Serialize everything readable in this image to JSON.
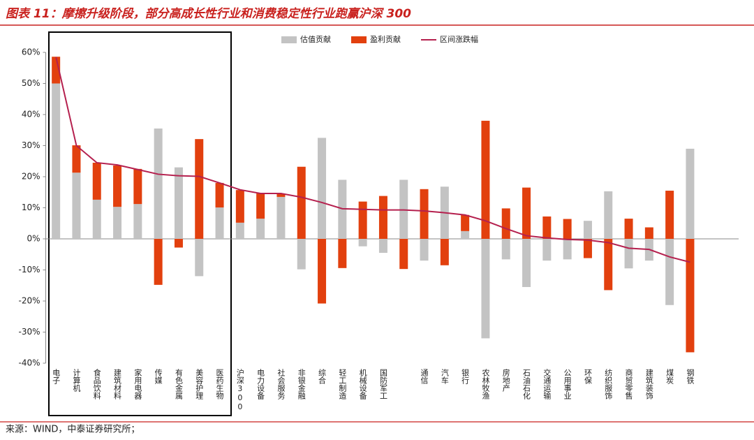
{
  "title": "图表 11：摩擦升级阶段，部分高成长性行业和消费稳定性行业跑赢沪深 300",
  "source": "来源：WIND，中泰证券研究所；",
  "chart_data": {
    "type": "bar",
    "stacked": true,
    "categories": [
      "电子",
      "计算机",
      "食品饮料",
      "建筑材料",
      "家用电器",
      "传媒",
      "有色金属",
      "美容护理",
      "医药生物",
      "沪深300",
      "电力设备",
      "社会服务",
      "非银金融",
      "综合",
      "轻工制造",
      "机械设备",
      "国防军工",
      null,
      "通信",
      "汽车",
      "银行",
      "农林牧渔",
      "房地产",
      "石油石化",
      "交通运输",
      "公用事业",
      "环保",
      "纺织服饰",
      "商贸零售",
      "建筑装饰",
      "煤炭",
      "钢铁"
    ],
    "series": [
      {
        "name": "估值贡献",
        "color": "#c3c3c3",
        "values": [
          50,
          21.3,
          12.6,
          10.3,
          11.2,
          35.5,
          23,
          -12,
          10.1,
          5.2,
          6.5,
          13.5,
          -9.8,
          32.5,
          19,
          -2.4,
          -4.5,
          19,
          -7,
          16.8,
          2.5,
          -32,
          -6.6,
          -15.5,
          -7,
          -6.6,
          5.8,
          15.3,
          -9.5,
          -7,
          -21.3,
          29
        ]
      },
      {
        "name": "盈利贡献",
        "color": "#e2400e",
        "values": [
          8.6,
          8.8,
          11.9,
          13.3,
          11.3,
          -14.8,
          -2.8,
          32.1,
          7.9,
          10.5,
          8.1,
          1.1,
          23.2,
          -20.8,
          -9.4,
          12,
          13.8,
          -9.7,
          16,
          -8.5,
          5.2,
          38,
          9.8,
          16.5,
          7.2,
          6.4,
          -6.2,
          -16.5,
          6.5,
          3.7,
          15.5,
          -36.5
        ]
      },
      {
        "name": "区间涨跌幅",
        "color": "#b5204e",
        "type": "line",
        "values": [
          58.5,
          30,
          24.5,
          23.8,
          22.3,
          20.8,
          20.3,
          20.1,
          18,
          15.8,
          14.6,
          14.6,
          13.4,
          11.7,
          9.7,
          9.5,
          9.3,
          9.3,
          9,
          8.4,
          7.7,
          5.8,
          3.3,
          1,
          0.3,
          -0.2,
          -0.4,
          -1.2,
          -3,
          -3.4,
          -5.8,
          -7.5
        ]
      }
    ],
    "ylim": [
      -40,
      60
    ],
    "yticks": [
      {
        "value": -40,
        "label": "-40%"
      },
      {
        "value": -30,
        "label": "-30%"
      },
      {
        "value": -20,
        "label": "-20%"
      },
      {
        "value": -10,
        "label": "-10%"
      },
      {
        "value": 0,
        "label": "0%"
      },
      {
        "value": 10,
        "label": "10%"
      },
      {
        "value": 20,
        "label": "20%"
      },
      {
        "value": 30,
        "label": "30%"
      },
      {
        "value": 40,
        "label": "40%"
      },
      {
        "value": 50,
        "label": "50%"
      },
      {
        "value": 60,
        "label": "60%"
      }
    ],
    "legend": "top"
  }
}
